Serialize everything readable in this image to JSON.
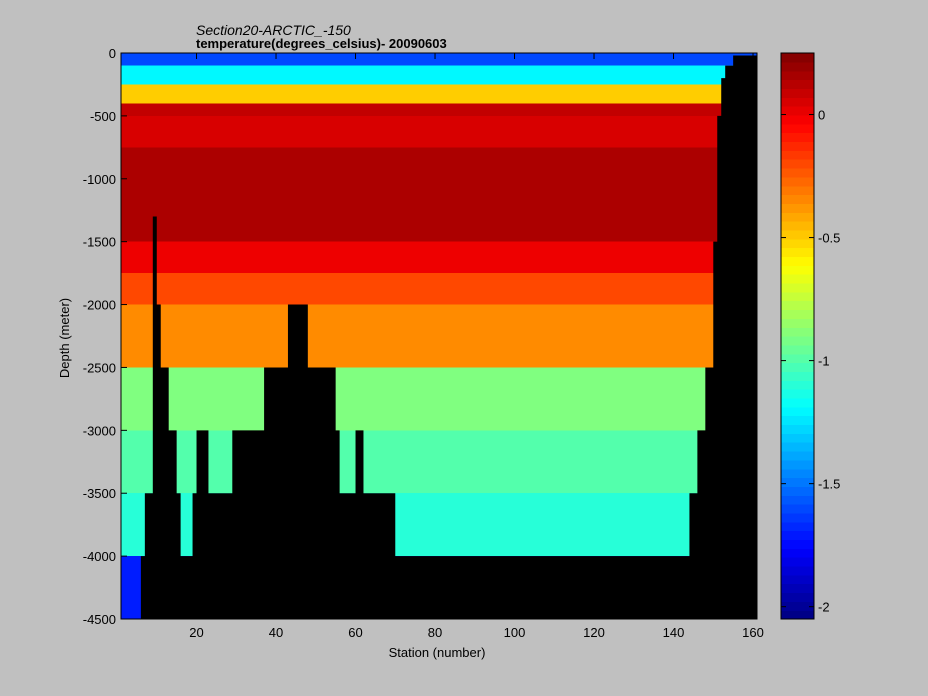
{
  "chart_data": {
    "type": "heatmap",
    "title_line1": "Section20-ARCTIC_-150",
    "title_line2": "temperature(degrees_celsius)- 20090603",
    "xlabel": "Station (number)",
    "ylabel": "Depth (meter)",
    "xlim": [
      1,
      161
    ],
    "ylim": [
      -4500,
      0
    ],
    "xticks": [
      20,
      40,
      60,
      80,
      100,
      120,
      140,
      160
    ],
    "yticks": [
      0,
      -500,
      -1000,
      -1500,
      -2000,
      -2500,
      -3000,
      -3500,
      -4000,
      -4500
    ],
    "colorbar": {
      "range": [
        -2.05,
        0.25
      ],
      "ticks": [
        0,
        -0.5,
        -1,
        -1.5,
        -2
      ],
      "colormap": "jet"
    },
    "mask_color": "#000000",
    "depth_layers": [
      {
        "top": 0,
        "bottom": -100,
        "value": -1.6
      },
      {
        "top": -100,
        "bottom": -250,
        "value": -1.2
      },
      {
        "top": -250,
        "bottom": -400,
        "value": -0.5
      },
      {
        "top": -400,
        "bottom": -500,
        "value": 0.1
      },
      {
        "top": -500,
        "bottom": -750,
        "value": 0.05
      },
      {
        "top": -750,
        "bottom": -1500,
        "value": 0.15
      },
      {
        "top": -1500,
        "bottom": -1750,
        "value": 0.0
      },
      {
        "top": -1750,
        "bottom": -2000,
        "value": -0.2
      },
      {
        "top": -2000,
        "bottom": -2500,
        "value": -0.35
      },
      {
        "top": -2500,
        "bottom": -3000,
        "value": -0.9
      },
      {
        "top": -3000,
        "bottom": -3500,
        "value": -1.0
      },
      {
        "top": -3500,
        "bottom": -4000,
        "value": -1.1
      },
      {
        "top": -4000,
        "bottom": -4500,
        "value": -1.7
      }
    ],
    "bottom_depth_by_station": [
      [
        1,
        -4500
      ],
      [
        5,
        -4500
      ],
      [
        6,
        -4000
      ],
      [
        7,
        -3500
      ],
      [
        9,
        -1300
      ],
      [
        10,
        -2000
      ],
      [
        11,
        -2500
      ],
      [
        13,
        -3000
      ],
      [
        15,
        -3500
      ],
      [
        16,
        -4000
      ],
      [
        17,
        -4000
      ],
      [
        19,
        -3500
      ],
      [
        20,
        -3000
      ],
      [
        23,
        -3500
      ],
      [
        29,
        -3000
      ],
      [
        37,
        -2500
      ],
      [
        43,
        -2000
      ],
      [
        47,
        -2000
      ],
      [
        48,
        -2500
      ],
      [
        55,
        -3000
      ],
      [
        56,
        -3500
      ],
      [
        60,
        -3000
      ],
      [
        62,
        -3500
      ],
      [
        70,
        -4000
      ],
      [
        105,
        -4000
      ],
      [
        144,
        -3500
      ],
      [
        146,
        -3000
      ],
      [
        148,
        -2500
      ],
      [
        150,
        -1500
      ],
      [
        151,
        -500
      ],
      [
        152,
        -200
      ],
      [
        153,
        -100
      ],
      [
        155,
        -20
      ],
      [
        161,
        0
      ]
    ]
  }
}
